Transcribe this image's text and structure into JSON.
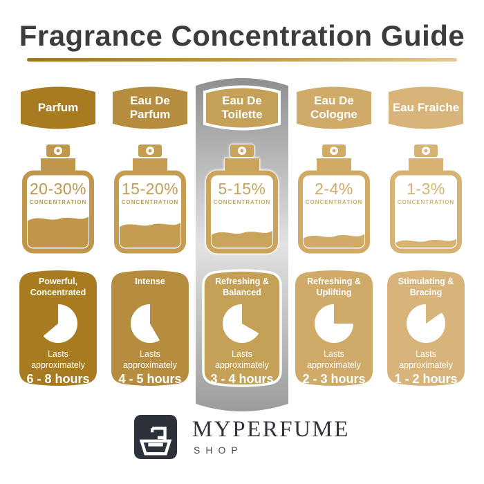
{
  "title": "Fragrance Concentration Guide",
  "underline_gradient": {
    "left": "#9e741c",
    "mid": "#c49a52",
    "right": "#e3c994"
  },
  "highlight_strip_colors": {
    "top": "#8f8f8f",
    "mid": "#e2e2e2",
    "bottom": "#9c9c9c"
  },
  "columns": [
    {
      "name": "Parfum",
      "concentration": "20-30%",
      "concentration_label": "CONCENTRATION",
      "fill_percent": 42,
      "description": "Powerful, Concentrated",
      "lasts_label": "Lasts approximately",
      "duration": "6 - 8 hours",
      "colors": {
        "deep": "#a87b20",
        "bottle": "#c0964b"
      },
      "clock": {
        "start_deg": 230,
        "end_deg": 360
      },
      "highlighted": false
    },
    {
      "name": "Eau De Parfum",
      "concentration": "15-20%",
      "concentration_label": "CONCENTRATION",
      "fill_percent": 33,
      "description": "Intense",
      "lasts_label": "Lasts approximately",
      "duration": "4 - 5 hours",
      "colors": {
        "deep": "#b68c3e",
        "bottle": "#c59d52"
      },
      "clock": {
        "start_deg": 0,
        "end_deg": 150
      },
      "highlighted": false
    },
    {
      "name": "Eau De Toilette",
      "concentration": "5-15%",
      "concentration_label": "CONCENTRATION",
      "fill_percent": 21,
      "description": "Refreshing & Balanced",
      "lasts_label": "Lasts approximately",
      "duration": "3 - 4 hours",
      "colors": {
        "deep": "#c5a057",
        "bottle": "#c9a45a"
      },
      "clock": {
        "start_deg": 0,
        "end_deg": 120
      },
      "highlighted": true
    },
    {
      "name": "Eau De Cologne",
      "concentration": "2-4%",
      "concentration_label": "CONCENTRATION",
      "fill_percent": 16,
      "description": "Refreshing & Uplifting",
      "lasts_label": "Lasts approximately",
      "duration": "2 - 3 hours",
      "colors": {
        "deep": "#cfaa68",
        "bottle": "#d1ab66"
      },
      "clock": {
        "start_deg": 0,
        "end_deg": 90
      },
      "highlighted": false
    },
    {
      "name": "Eau Fraiche",
      "concentration": "1-3%",
      "concentration_label": "CONCENTRATION",
      "fill_percent": 9,
      "description": "Stimulating & Bracing",
      "lasts_label": "Lasts approximately",
      "duration": "1 - 2 hours",
      "colors": {
        "deep": "#d8b47b",
        "bottle": "#d7b272"
      },
      "clock": {
        "start_deg": 0,
        "end_deg": 55
      },
      "highlighted": false
    }
  ],
  "footer": {
    "brand": "MYPERFUME",
    "sub_brand": "SHOP",
    "logo_icon": "perfume-bottle-icon",
    "logo_bg": "#2c313a"
  }
}
